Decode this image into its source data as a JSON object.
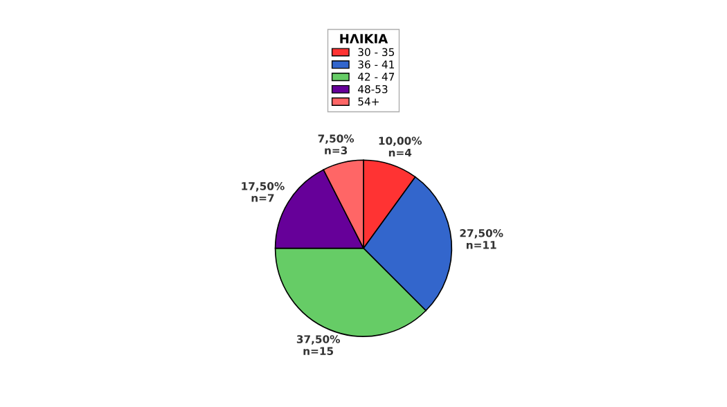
{
  "chart_data": {
    "type": "pie",
    "legend_title": "ΗΛΙΚΙΑ",
    "categories": [
      "30 - 35",
      "36 - 41",
      "42 - 47",
      "48-53",
      "54+"
    ],
    "values": [
      10,
      27.5,
      37.5,
      17.5,
      7.5
    ],
    "colors": [
      "#ff3333",
      "#3366cc",
      "#66cc66",
      "#660099",
      "#ff6666"
    ],
    "value_labels": [
      "10,00%\nn=4",
      "27,50%\nn=11",
      "37,50%\nn=15",
      "17,50%\nn=7",
      "7,50%\nn=3"
    ],
    "legend": "top"
  }
}
